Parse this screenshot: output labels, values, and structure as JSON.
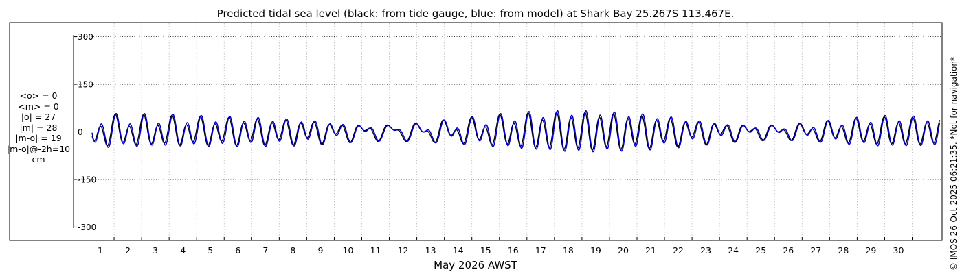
{
  "chart_data": {
    "type": "line",
    "title": "Predicted tidal sea level (black: from tide gauge, blue: from model) at Shark Bay 25.267S 113.467E.",
    "xlabel": "May 2026 AWST",
    "ylabel": "",
    "xlim": [
      0.2,
      31.0
    ],
    "ylim": [
      -320,
      320
    ],
    "yticks": [
      300,
      150,
      0,
      -150,
      -300
    ],
    "ytick_labels": [
      "300",
      "150",
      "0",
      "-150",
      "-300"
    ],
    "xticks": [
      1,
      2,
      3,
      4,
      5,
      6,
      7,
      8,
      9,
      10,
      11,
      12,
      13,
      14,
      15,
      16,
      17,
      18,
      19,
      20,
      21,
      22,
      23,
      24,
      25,
      26,
      27,
      28,
      29,
      30
    ],
    "xtick_labels": [
      "1",
      "2",
      "3",
      "4",
      "5",
      "6",
      "7",
      "8",
      "9",
      "10",
      "11",
      "12",
      "13",
      "14",
      "15",
      "16",
      "17",
      "18",
      "19",
      "20",
      "21",
      "22",
      "23",
      "24",
      "25",
      "26",
      "27",
      "28",
      "29",
      "30"
    ],
    "grid": true,
    "series": [
      {
        "name": "tide gauge",
        "color": "#000000",
        "days": [
          0.2,
          1,
          2,
          3,
          4,
          5,
          6,
          7,
          8,
          9,
          10,
          11,
          12,
          13,
          14,
          15,
          16,
          17,
          18,
          19,
          20,
          21,
          22,
          23,
          24,
          25,
          26,
          27,
          28,
          29,
          30,
          31
        ],
        "amp_m2": [
          36,
          36,
          37,
          37,
          36,
          36,
          35,
          33,
          30,
          22,
          14,
          10,
          12,
          20,
          28,
          38,
          46,
          52,
          54,
          52,
          46,
          40,
          30,
          22,
          14,
          12,
          16,
          24,
          32,
          38,
          38,
          36
        ],
        "amp_k1": [
          20,
          20,
          18,
          16,
          14,
          12,
          10,
          10,
          12,
          15,
          18,
          20,
          22,
          22,
          20,
          17,
          14,
          10,
          8,
          8,
          10,
          12,
          14,
          15,
          16,
          16,
          15,
          14,
          12,
          10,
          8,
          8
        ],
        "m2_phase_deg": 0,
        "k1_phase_deg": 30
      },
      {
        "name": "model",
        "color": "#0000cc",
        "days": [
          0.2,
          1,
          2,
          3,
          4,
          5,
          6,
          7,
          8,
          9,
          10,
          11,
          12,
          13,
          14,
          15,
          16,
          17,
          18,
          19,
          20,
          21,
          22,
          23,
          24,
          25,
          26,
          27,
          28,
          29,
          30,
          31
        ],
        "amp_m2": [
          41,
          41,
          42,
          42,
          41,
          41,
          40,
          37,
          34,
          25,
          15,
          11,
          13,
          22,
          32,
          43,
          52,
          58,
          61,
          58,
          52,
          45,
          34,
          25,
          15,
          13,
          18,
          27,
          36,
          43,
          43,
          41
        ],
        "amp_k1": [
          18,
          18,
          16,
          14,
          12,
          10,
          9,
          9,
          11,
          13,
          16,
          18,
          20,
          20,
          18,
          15,
          12,
          9,
          7,
          7,
          9,
          11,
          12,
          13,
          14,
          14,
          13,
          12,
          11,
          9,
          7,
          7
        ],
        "m2_phase_deg": 22,
        "k1_phase_deg": 45
      }
    ],
    "annotations": [
      "© IMOS 26-Oct-2025 06:21:35. *Not for navigation*"
    ]
  },
  "stats": {
    "lines": [
      "<o> = 0",
      "<m> = 0",
      "|o| = 27",
      "|m| = 28",
      "|m-o| = 19",
      "|m-o|@-2h=10",
      "cm"
    ]
  },
  "colors": {
    "observed": "#000000",
    "model": "#0000cc",
    "grid_vertical": "#b8b8c8",
    "grid_horizontal": "#000000"
  }
}
